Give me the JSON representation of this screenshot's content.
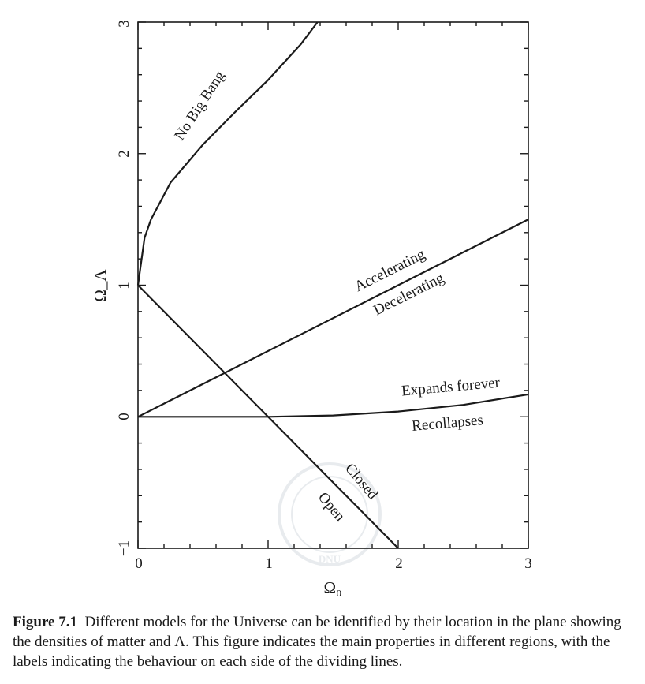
{
  "chart_data": {
    "type": "line",
    "xlabel": "Ω₀",
    "ylabel": "Ω_Λ",
    "xlim": [
      0,
      3
    ],
    "ylim": [
      -1,
      3
    ],
    "x_ticks": [
      "0",
      "1",
      "2",
      "3"
    ],
    "y_ticks": [
      "−1",
      "0",
      "1",
      "2",
      "3"
    ],
    "grid": false,
    "series": [
      {
        "id": "no-big-bang",
        "x": [
          0,
          0.05,
          0.1,
          0.25,
          0.5,
          0.75,
          1.0,
          1.25,
          1.38
        ],
        "y": [
          1.0,
          1.36,
          1.5,
          1.78,
          2.07,
          2.32,
          2.56,
          2.83,
          3.0
        ]
      },
      {
        "id": "accelerating-boundary",
        "x": [
          0,
          3
        ],
        "y": [
          0,
          1.5
        ]
      },
      {
        "id": "expansion-boundary",
        "x": [
          0,
          1,
          1.5,
          2,
          2.5,
          3
        ],
        "y": [
          0,
          0,
          0.01,
          0.04,
          0.09,
          0.17
        ]
      },
      {
        "id": "open-closed-boundary",
        "x": [
          0,
          2
        ],
        "y": [
          1,
          -1
        ]
      }
    ],
    "annotations": [
      {
        "text": "No Big Bang"
      },
      {
        "text": "Accelerating"
      },
      {
        "text": "Decelerating"
      },
      {
        "text": "Expands forever"
      },
      {
        "text": "Recollapses"
      },
      {
        "text": "Closed"
      },
      {
        "text": "Open"
      }
    ],
    "watermark": "DNU",
    "line_color": "#1a1a1a"
  },
  "caption": {
    "label": "Figure 7.1",
    "text": "Different models for the Universe can be identified by their location in the plane showing the densities of matter and Λ. This figure indicates the main properties in different regions, with the labels indicating the behaviour on each side of the dividing lines."
  }
}
